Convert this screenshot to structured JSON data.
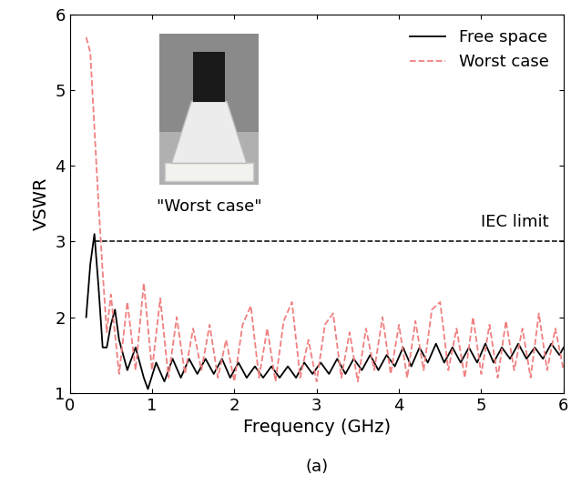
{
  "chart_data": {
    "type": "line",
    "xlabel": "Frequency (GHz)",
    "ylabel": "VSWR",
    "xlim": [
      0,
      6
    ],
    "xticks": [
      0,
      1,
      2,
      3,
      4,
      5,
      6
    ],
    "ylim": [
      1,
      6
    ],
    "yticks": [
      1,
      2,
      3,
      4,
      5,
      6
    ],
    "legend": "upper right",
    "caption": "(a)",
    "annotations": [
      {
        "text": "\"Worst case\""
      }
    ],
    "limit": {
      "label": "IEC limit",
      "value": 3,
      "x": [
        0.3,
        6
      ]
    },
    "series": [
      {
        "name": "Free space",
        "color": "#000000",
        "line_style": "solid",
        "x": [
          0.2,
          0.25,
          0.3,
          0.35,
          0.4,
          0.45,
          0.5,
          0.55,
          0.6,
          0.7,
          0.8,
          0.9,
          0.95,
          1.05,
          1.15,
          1.25,
          1.35,
          1.45,
          1.55,
          1.65,
          1.75,
          1.85,
          1.95,
          2.05,
          2.15,
          2.25,
          2.35,
          2.45,
          2.55,
          2.65,
          2.75,
          2.85,
          2.95,
          3.05,
          3.15,
          3.25,
          3.35,
          3.45,
          3.55,
          3.65,
          3.75,
          3.85,
          3.95,
          4.05,
          4.15,
          4.25,
          4.35,
          4.45,
          4.55,
          4.65,
          4.75,
          4.85,
          4.95,
          5.05,
          5.15,
          5.25,
          5.35,
          5.45,
          5.55,
          5.65,
          5.75,
          5.85,
          5.95,
          6.0
        ],
        "values": [
          2.0,
          2.7,
          3.1,
          2.4,
          1.6,
          1.6,
          1.9,
          2.1,
          1.7,
          1.3,
          1.6,
          1.2,
          1.05,
          1.4,
          1.15,
          1.45,
          1.2,
          1.45,
          1.25,
          1.45,
          1.25,
          1.45,
          1.2,
          1.4,
          1.2,
          1.35,
          1.2,
          1.35,
          1.2,
          1.35,
          1.2,
          1.4,
          1.25,
          1.4,
          1.25,
          1.45,
          1.25,
          1.45,
          1.3,
          1.5,
          1.3,
          1.5,
          1.35,
          1.6,
          1.35,
          1.6,
          1.4,
          1.65,
          1.4,
          1.6,
          1.4,
          1.6,
          1.4,
          1.65,
          1.4,
          1.6,
          1.45,
          1.65,
          1.45,
          1.6,
          1.45,
          1.65,
          1.5,
          1.6
        ]
      },
      {
        "name": "Worst case",
        "color": "#f08080",
        "line_style": "dashed",
        "x": [
          0.2,
          0.25,
          0.3,
          0.35,
          0.4,
          0.45,
          0.5,
          0.6,
          0.7,
          0.8,
          0.9,
          1.0,
          1.1,
          1.2,
          1.3,
          1.4,
          1.5,
          1.6,
          1.7,
          1.8,
          1.9,
          2.0,
          2.1,
          2.2,
          2.3,
          2.4,
          2.5,
          2.6,
          2.7,
          2.8,
          2.9,
          3.0,
          3.1,
          3.2,
          3.3,
          3.4,
          3.5,
          3.6,
          3.7,
          3.8,
          3.9,
          4.0,
          4.1,
          4.2,
          4.3,
          4.4,
          4.5,
          4.6,
          4.7,
          4.8,
          4.9,
          5.0,
          5.1,
          5.2,
          5.3,
          5.4,
          5.5,
          5.6,
          5.7,
          5.8,
          5.9,
          6.0
        ],
        "values": [
          5.7,
          5.5,
          4.5,
          3.5,
          2.6,
          1.8,
          2.3,
          1.25,
          2.2,
          1.3,
          2.45,
          1.3,
          2.25,
          1.2,
          2.0,
          1.25,
          1.85,
          1.3,
          1.9,
          1.2,
          1.7,
          1.15,
          1.9,
          2.15,
          1.2,
          1.85,
          1.15,
          1.95,
          2.2,
          1.2,
          1.7,
          1.15,
          1.9,
          2.05,
          1.2,
          1.8,
          1.15,
          1.85,
          1.3,
          2.0,
          1.25,
          1.9,
          1.2,
          1.95,
          1.3,
          2.1,
          2.2,
          1.3,
          1.85,
          1.2,
          2.0,
          1.25,
          1.9,
          1.2,
          1.95,
          1.3,
          1.85,
          1.2,
          2.05,
          1.3,
          1.85,
          1.3
        ]
      }
    ]
  }
}
